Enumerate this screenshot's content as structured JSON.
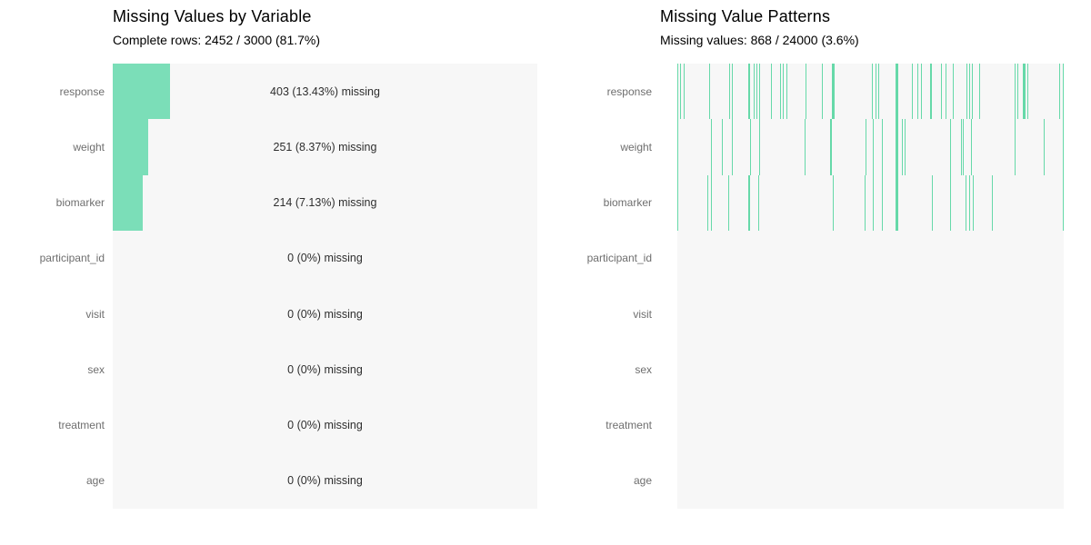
{
  "colors": {
    "bar_fill": "#7bdeb8",
    "tick_fill": "#66d9a9",
    "plot_background": "#f7f7f7",
    "row_label_text": "#6e6e6e",
    "value_label_text": "#2e2e2e",
    "title_text": "#000000"
  },
  "variables": [
    "response",
    "weight",
    "biomarker",
    "participant_id",
    "visit",
    "sex",
    "treatment",
    "age"
  ],
  "left_panel": {
    "title": "Missing Values by Variable",
    "subtitle": "Complete rows: 2452 / 3000 (81.7%)"
  },
  "right_panel": {
    "title": "Missing Value Patterns",
    "subtitle": "Missing values: 868 / 24000 (3.6%)"
  },
  "chart_data": [
    {
      "type": "bar",
      "orientation": "horizontal",
      "title": "Missing Values by Variable",
      "subtitle": "Complete rows: 2452 / 3000 (81.7%)",
      "categories": [
        "response",
        "weight",
        "biomarker",
        "participant_id",
        "visit",
        "sex",
        "treatment",
        "age"
      ],
      "values": [
        403,
        251,
        214,
        0,
        0,
        0,
        0,
        0
      ],
      "percent_missing": [
        13.43,
        8.37,
        7.13,
        0,
        0,
        0,
        0,
        0
      ],
      "bar_labels": [
        "403 (13.43%) missing",
        "251 (8.37%) missing",
        "214 (7.13%) missing",
        "0 (0%) missing",
        "0 (0%) missing",
        "0 (0%) missing",
        "0 (0%) missing",
        "0 (0%) missing"
      ],
      "xlim": [
        0,
        3000
      ],
      "total_rows": 3000,
      "complete_rows": 2452,
      "complete_rows_pct": 81.7,
      "grid": false,
      "legend": false
    },
    {
      "type": "heatmap",
      "subtype": "missingness-tick-pattern",
      "title": "Missing Value Patterns",
      "subtitle": "Missing values: 868 / 24000 (3.6%)",
      "categories": [
        "response",
        "weight",
        "biomarker",
        "participant_id",
        "visit",
        "sex",
        "treatment",
        "age"
      ],
      "total_cells": 24000,
      "missing_cells": 868,
      "missing_pct": 3.6,
      "x_axis": "row index as fraction of 3000 rows (0 to 1)",
      "tick_format": "[position_fraction, line_width_px]",
      "ticks": {
        "response": [
          [
            0.001,
            1
          ],
          [
            0.006,
            1
          ],
          [
            0.017,
            1
          ],
          [
            0.082,
            1
          ],
          [
            0.133,
            1
          ],
          [
            0.141,
            1
          ],
          [
            0.184,
            2
          ],
          [
            0.198,
            1
          ],
          [
            0.205,
            1
          ],
          [
            0.212,
            1
          ],
          [
            0.242,
            1
          ],
          [
            0.265,
            1
          ],
          [
            0.273,
            1
          ],
          [
            0.282,
            1
          ],
          [
            0.331,
            1
          ],
          [
            0.375,
            1
          ],
          [
            0.401,
            3
          ],
          [
            0.503,
            1
          ],
          [
            0.512,
            1
          ],
          [
            0.52,
            1
          ],
          [
            0.564,
            3
          ],
          [
            0.608,
            1
          ],
          [
            0.62,
            1
          ],
          [
            0.63,
            1
          ],
          [
            0.655,
            2
          ],
          [
            0.682,
            1
          ],
          [
            0.694,
            1
          ],
          [
            0.714,
            1
          ],
          [
            0.749,
            1
          ],
          [
            0.755,
            1
          ],
          [
            0.763,
            1
          ],
          [
            0.78,
            1
          ],
          [
            0.874,
            1
          ],
          [
            0.881,
            1
          ],
          [
            0.895,
            3
          ],
          [
            0.907,
            1
          ],
          [
            0.988,
            1
          ],
          [
            0.998,
            1
          ]
        ],
        "weight": [
          [
            0.001,
            1
          ],
          [
            0.088,
            1
          ],
          [
            0.116,
            1
          ],
          [
            0.14,
            1
          ],
          [
            0.188,
            1
          ],
          [
            0.212,
            1
          ],
          [
            0.329,
            1
          ],
          [
            0.395,
            2
          ],
          [
            0.488,
            1
          ],
          [
            0.506,
            1
          ],
          [
            0.529,
            1
          ],
          [
            0.564,
            3
          ],
          [
            0.581,
            1
          ],
          [
            0.588,
            1
          ],
          [
            0.706,
            1
          ],
          [
            0.733,
            1
          ],
          [
            0.739,
            1
          ],
          [
            0.761,
            1
          ],
          [
            0.874,
            1
          ],
          [
            0.949,
            1
          ],
          [
            0.998,
            1
          ]
        ],
        "biomarker": [
          [
            0.001,
            1
          ],
          [
            0.078,
            1
          ],
          [
            0.088,
            1
          ],
          [
            0.132,
            1
          ],
          [
            0.184,
            2
          ],
          [
            0.21,
            1
          ],
          [
            0.402,
            1
          ],
          [
            0.485,
            1
          ],
          [
            0.506,
            1
          ],
          [
            0.529,
            1
          ],
          [
            0.564,
            3
          ],
          [
            0.659,
            1
          ],
          [
            0.706,
            1
          ],
          [
            0.747,
            1
          ],
          [
            0.755,
            1
          ],
          [
            0.765,
            1
          ],
          [
            0.814,
            1
          ],
          [
            0.998,
            1
          ]
        ],
        "participant_id": [],
        "visit": [],
        "sex": [],
        "treatment": [],
        "age": []
      }
    }
  ]
}
